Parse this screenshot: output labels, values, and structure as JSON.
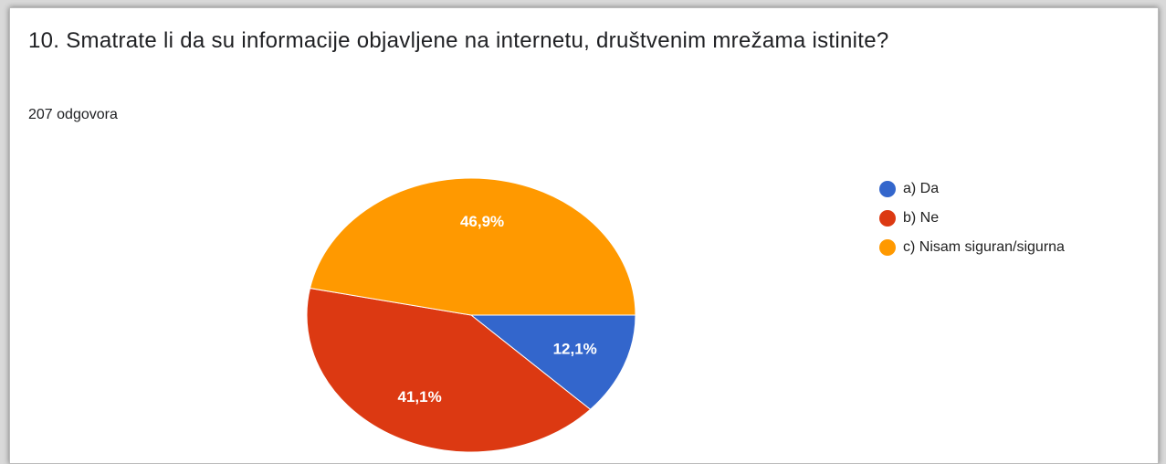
{
  "chart_data": {
    "type": "pie",
    "title": "10. Smatrate li da su informacije objavljene na internetu, društvenim mrežama istinite?",
    "subtitle": "207 odgovora",
    "categories": [
      "a) Da",
      "b) Ne",
      "c) Nisam siguran/sigurna"
    ],
    "values": [
      12.1,
      41.1,
      46.9
    ],
    "value_labels": [
      "12,1%",
      "41,1%",
      "46,9%"
    ],
    "colors": [
      "#3366cc",
      "#dc3912",
      "#ff9900"
    ],
    "legend": "right"
  }
}
